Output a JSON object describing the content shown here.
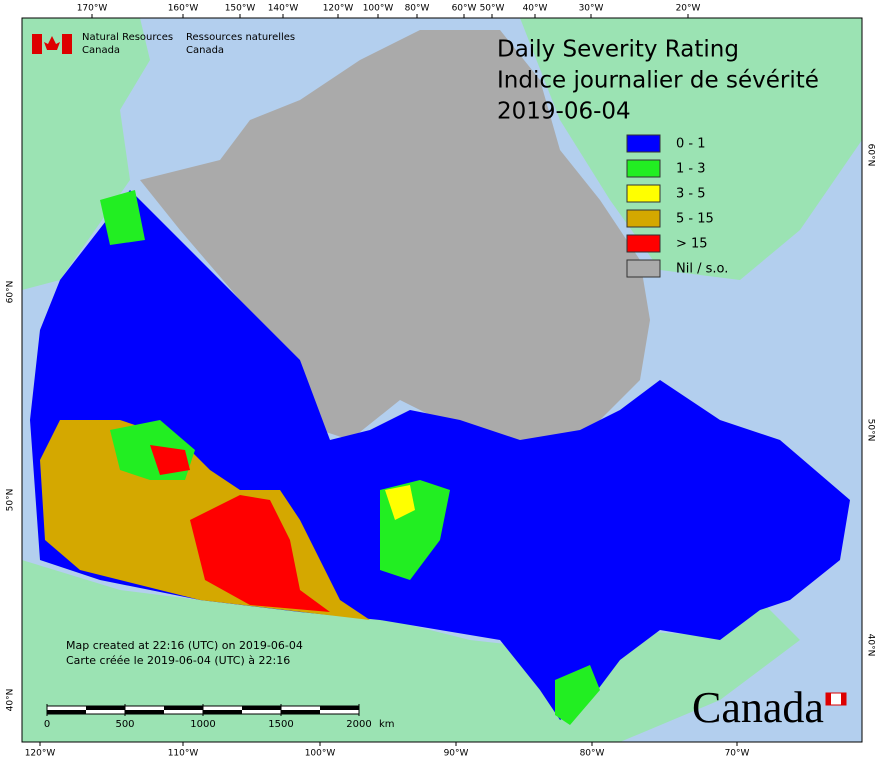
{
  "header": {
    "agency_en": [
      "Natural Resources",
      "Canada"
    ],
    "agency_fr": [
      "Ressources naturelles",
      "Canada"
    ]
  },
  "title": {
    "en": "Daily Severity Rating",
    "fr": "Indice journalier de sévérité",
    "date": "2019-06-04"
  },
  "legend": [
    {
      "label": "0 - 1",
      "color": "#0000ff"
    },
    {
      "label": "1 - 3",
      "color": "#22ee22"
    },
    {
      "label": "3 - 5",
      "color": "#ffff00"
    },
    {
      "label": "5 - 15",
      "color": "#d4a800"
    },
    {
      "label": "> 15",
      "color": "#ff0000"
    },
    {
      "label": "Nil / s.o.",
      "color": "#aaaaaa"
    }
  ],
  "graticule": {
    "top": [
      "170°W",
      "160°W",
      "150°W",
      "140°W",
      "120°W",
      "100°W",
      "80°W",
      "60°W",
      "50°W",
      "40°W",
      "30°W",
      "20°W"
    ],
    "bottom": [
      "120°W",
      "110°W",
      "100°W",
      "90°W",
      "80°W",
      "70°W"
    ],
    "left": [
      "60°N",
      "50°N",
      "40°N"
    ],
    "right": [
      "60°N",
      "50°N",
      "40°N"
    ]
  },
  "footnote": [
    "Map created at 22:16 (UTC) on 2019-06-04",
    "Carte créée le 2019-06-04 (UTC) à 22:16"
  ],
  "scale_bar": {
    "ticks": [
      0,
      500,
      1000,
      1500,
      2000
    ],
    "unit": "km"
  },
  "wordmark": "Canada"
}
